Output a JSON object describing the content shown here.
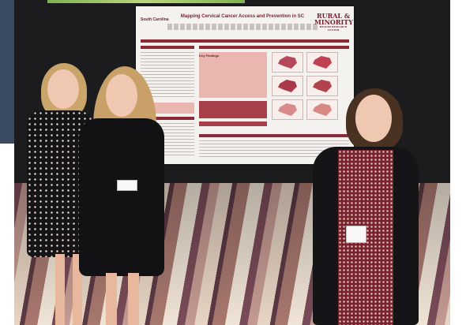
{
  "poster": {
    "university": "South Carolina",
    "title": "Mapping Cervical Cancer Access and Prevention in SC",
    "logo_line1": "RURAL &",
    "logo_line2": "MINORITY",
    "logo_sub": "HEALTH RESEARCH CENTER",
    "findings_heading": "Key Findings"
  },
  "colors": {
    "accent": "#8c2a38",
    "wall": "#1c1c1e",
    "poster_bg": "#f4f2ef"
  }
}
